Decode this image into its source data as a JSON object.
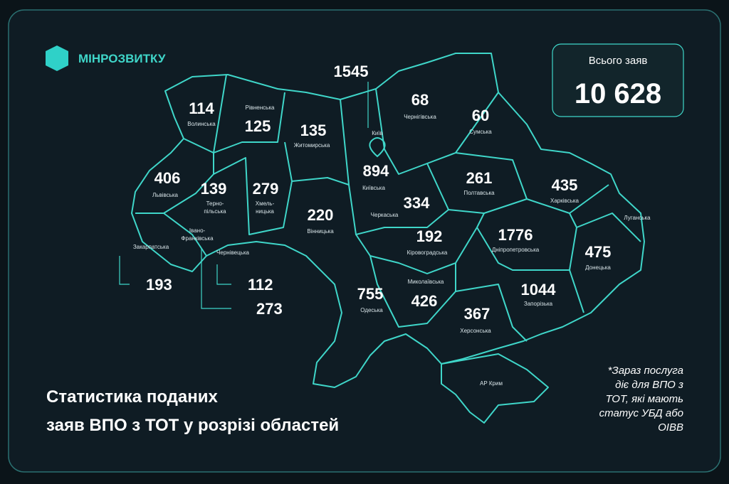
{
  "logo": "МІНРОЗВИТКУ",
  "total": {
    "label": "Всього заяв",
    "value": "10 628"
  },
  "title": [
    "Статистика поданих",
    "заяв ВПО з ТОТ у розрізі областей"
  ],
  "footnote": [
    "*Зараз послуга",
    "діє для ВПО з",
    "ТОТ, які мають",
    "статус УБД або",
    "ОІВВ"
  ],
  "regions": [
    {
      "name": [
        "Волинська"
      ],
      "value": 114
    },
    {
      "name": [
        "Рівненська"
      ],
      "value": 125
    },
    {
      "name": [
        "Житомирська"
      ],
      "value": 135
    },
    {
      "name": [
        "Київ"
      ],
      "value": 1545
    },
    {
      "name": [
        "Київська"
      ],
      "value": 894
    },
    {
      "name": [
        "Чернігівська"
      ],
      "value": 68
    },
    {
      "name": [
        "Сумська"
      ],
      "value": 60
    },
    {
      "name": [
        "Львівська"
      ],
      "value": 406
    },
    {
      "name": [
        "Терно-",
        "пільська"
      ],
      "value": 139
    },
    {
      "name": [
        "Хмель-",
        "ницька"
      ],
      "value": 279
    },
    {
      "name": [
        "Вінницька"
      ],
      "value": 220
    },
    {
      "name": [
        "Черкаська"
      ],
      "value": 334
    },
    {
      "name": [
        "Полтавська"
      ],
      "value": 261
    },
    {
      "name": [
        "Харківська"
      ],
      "value": 435
    },
    {
      "name": [
        "Луганська"
      ]
    },
    {
      "name": [
        "Закарпатська"
      ],
      "value": 193
    },
    {
      "name": [
        "Івано-",
        "Франківська"
      ],
      "value": 273
    },
    {
      "name": [
        "Чернівецька"
      ],
      "value": 112
    },
    {
      "name": [
        "Кіровоградська"
      ],
      "value": 192
    },
    {
      "name": [
        "Дніпропетровська"
      ],
      "value": 1776
    },
    {
      "name": [
        "Донецька"
      ],
      "value": 475
    },
    {
      "name": [
        "Одеська"
      ],
      "value": 755
    },
    {
      "name": [
        "Миколаївська"
      ],
      "value": 426
    },
    {
      "name": [
        "Херсонська"
      ],
      "value": 367
    },
    {
      "name": [
        "Запорізька"
      ],
      "value": 1044
    },
    {
      "name": [
        "АР Крим"
      ]
    }
  ]
}
